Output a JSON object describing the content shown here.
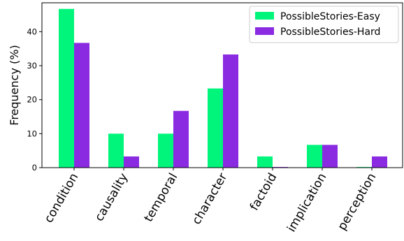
{
  "chart_data": {
    "type": "bar",
    "title": "",
    "xlabel": "",
    "ylabel": "Frequency (%)",
    "categories": [
      "condition",
      "causality",
      "temporal",
      "character",
      "factoid",
      "implication",
      "perception"
    ],
    "series": [
      {
        "name": "PossibleStories-Easy",
        "color": "#00f57a",
        "values": [
          46.7,
          10.0,
          10.0,
          23.3,
          3.3,
          6.7,
          0.2
        ]
      },
      {
        "name": "PossibleStories-Hard",
        "color": "#8a2be2",
        "values": [
          36.7,
          3.3,
          16.7,
          33.3,
          0.2,
          6.7,
          3.3
        ]
      }
    ],
    "ylim": [
      0,
      48.5
    ],
    "yticks": [
      0,
      10,
      20,
      30,
      40
    ],
    "grid": false,
    "legend": "top-right"
  }
}
